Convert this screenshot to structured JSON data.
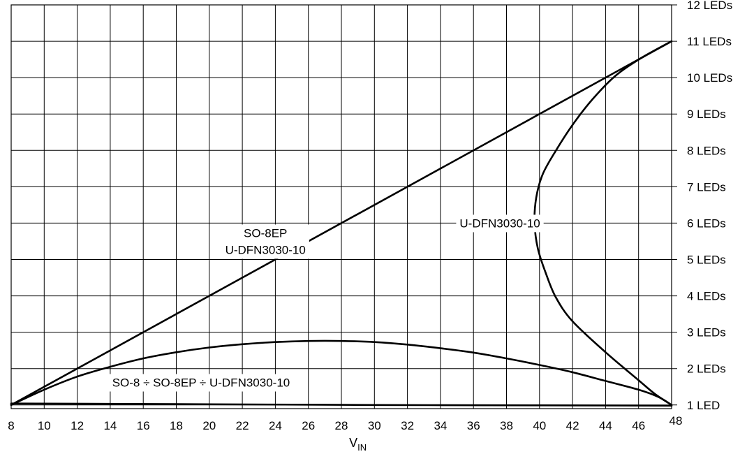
{
  "chart_data": {
    "type": "line",
    "title": "",
    "xlabel": "V",
    "xlabel_sub": "IN",
    "ylabel": "",
    "xlim": [
      8,
      48
    ],
    "ylim": [
      1,
      12
    ],
    "grid": true,
    "x_ticks": [
      {
        "v": 8,
        "label": "8"
      },
      {
        "v": 10,
        "label": "10"
      },
      {
        "v": 12,
        "label": "12"
      },
      {
        "v": 14,
        "label": "14"
      },
      {
        "v": 16,
        "label": "16"
      },
      {
        "v": 18,
        "label": "18"
      },
      {
        "v": 20,
        "label": "20"
      },
      {
        "v": 22,
        "label": "22"
      },
      {
        "v": 24,
        "label": "24"
      },
      {
        "v": 26,
        "label": "26"
      },
      {
        "v": 28,
        "label": "28"
      },
      {
        "v": 30,
        "label": "30"
      },
      {
        "v": 32,
        "label": "32"
      },
      {
        "v": 34,
        "label": "34"
      },
      {
        "v": 36,
        "label": "36"
      },
      {
        "v": 38,
        "label": "38"
      },
      {
        "v": 40,
        "label": "40"
      },
      {
        "v": 42,
        "label": "42"
      },
      {
        "v": 44,
        "label": "44"
      },
      {
        "v": 46,
        "label": "46"
      },
      {
        "v": 48,
        "label": "48"
      }
    ],
    "y_ticks": [
      {
        "v": 1,
        "label": "1 LED"
      },
      {
        "v": 2,
        "label": "2 LEDs"
      },
      {
        "v": 3,
        "label": "3 LEDs"
      },
      {
        "v": 4,
        "label": "4 LEDs"
      },
      {
        "v": 5,
        "label": "5 LEDs"
      },
      {
        "v": 6,
        "label": "6 LEDs"
      },
      {
        "v": 7,
        "label": "7 LEDs"
      },
      {
        "v": 8,
        "label": "8 LEDs"
      },
      {
        "v": 9,
        "label": "9 LEDs"
      },
      {
        "v": 10,
        "label": "10 LEDs"
      },
      {
        "v": 11,
        "label": "11 LEDs"
      },
      {
        "v": 12,
        "label": "12 LEDs"
      }
    ],
    "series": [
      {
        "points": [
          [
            8,
            1.0
          ],
          [
            48,
            11.0
          ]
        ]
      },
      {
        "points": [
          [
            8,
            1.0
          ],
          [
            10,
            1.42
          ],
          [
            12,
            1.78
          ],
          [
            14,
            2.05
          ],
          [
            16,
            2.28
          ],
          [
            18,
            2.45
          ],
          [
            20,
            2.58
          ],
          [
            22,
            2.67
          ],
          [
            24,
            2.73
          ],
          [
            26,
            2.76
          ],
          [
            28,
            2.76
          ],
          [
            30,
            2.73
          ],
          [
            32,
            2.66
          ],
          [
            34,
            2.56
          ],
          [
            36,
            2.44
          ],
          [
            38,
            2.28
          ],
          [
            40,
            2.1
          ],
          [
            42,
            1.9
          ],
          [
            44,
            1.66
          ],
          [
            46,
            1.42
          ],
          [
            47.2,
            1.22
          ],
          [
            48,
            1.0
          ]
        ]
      },
      {
        "points": [
          [
            8,
            1.04
          ],
          [
            20,
            1.02
          ],
          [
            30,
            1.0
          ],
          [
            40,
            0.99
          ],
          [
            48,
            0.98
          ]
        ]
      },
      {
        "points": [
          [
            48,
            1.0
          ],
          [
            47,
            1.3
          ],
          [
            46,
            1.68
          ],
          [
            44,
            2.45
          ],
          [
            42,
            3.3
          ],
          [
            41,
            3.95
          ],
          [
            40.4,
            4.6
          ],
          [
            39.9,
            5.3
          ],
          [
            39.7,
            6.0
          ],
          [
            39.8,
            6.7
          ],
          [
            40.2,
            7.35
          ],
          [
            41,
            8.0
          ],
          [
            42,
            8.7
          ],
          [
            43.2,
            9.4
          ],
          [
            44.6,
            10.05
          ],
          [
            46.2,
            10.55
          ],
          [
            48,
            11.0
          ]
        ]
      }
    ],
    "annotations": [
      {
        "x": 37.6,
        "y": 6.0,
        "lines": [
          "U-DFN3030-10"
        ]
      },
      {
        "x": 23.4,
        "y": 5.5,
        "lines": [
          "SO-8EP",
          "U-DFN3030-10"
        ]
      },
      {
        "x": 19.5,
        "y": 1.62,
        "lines": [
          "SO-8 ÷ SO-8EP ÷ U-DFN3030-10"
        ]
      }
    ]
  }
}
